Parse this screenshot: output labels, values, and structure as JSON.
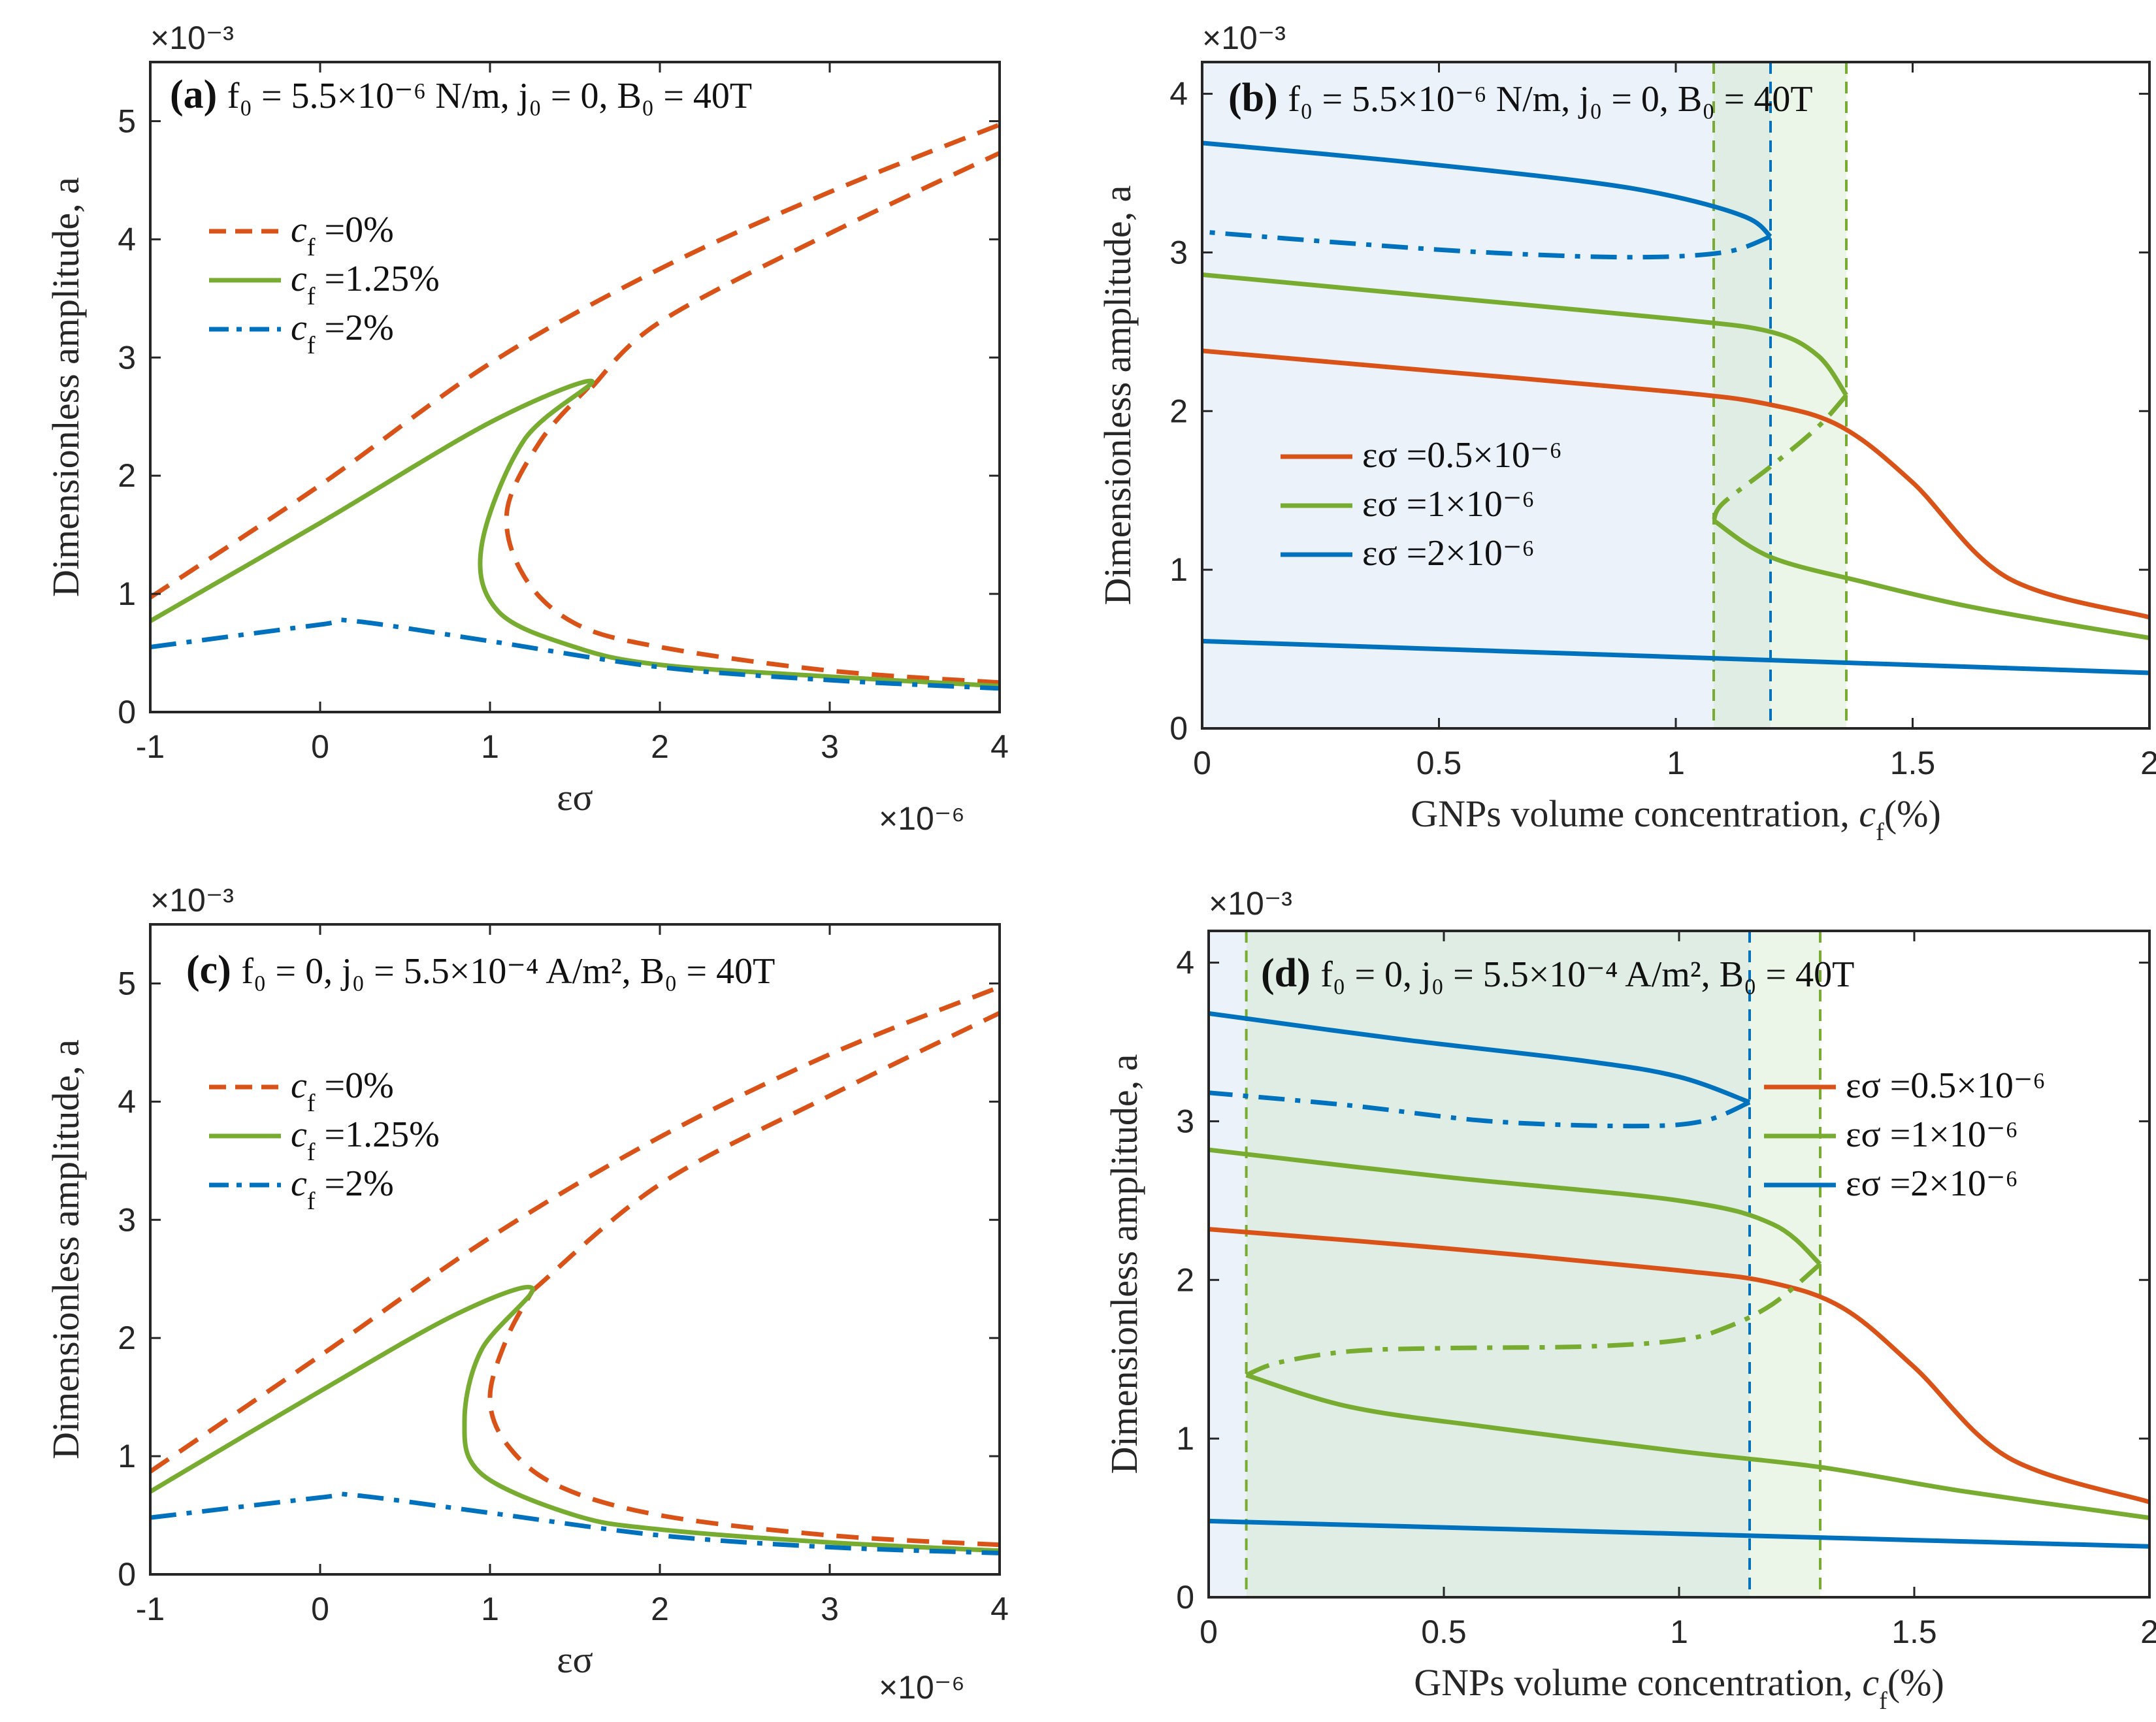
{
  "colors": {
    "c0": "#D95319",
    "c125": "#77AC30",
    "c2": "#0072BD",
    "shade_blue": "#C9D9F2",
    "shade_green": "#C9E6BE"
  },
  "chart_data": [
    {
      "id": "a",
      "type": "line",
      "panel_label": "(a)",
      "annotation": "f₀ = 5.5×10⁻⁶ N/m, j₀ = 0, B₀ = 40T",
      "xlabel": "εσ",
      "ylabel": "Dimensionless amplitude, a",
      "x_exponent": "×10⁻⁶",
      "y_exponent": "×10⁻³",
      "xlim": [
        -1,
        4
      ],
      "ylim": [
        0,
        5.5
      ],
      "xticks": [
        -1,
        0,
        1,
        2,
        3,
        4
      ],
      "yticks": [
        0,
        1,
        2,
        3,
        4,
        5
      ],
      "xtick_labels": [
        "-1",
        "0",
        "1",
        "2",
        "3",
        "4"
      ],
      "ytick_labels": [
        "0",
        "1",
        "2",
        "3",
        "4",
        "5"
      ],
      "legend": [
        {
          "label": "c_f =0%",
          "color_key": "c0",
          "style": "dashed"
        },
        {
          "label": "c_f =1.25%",
          "color_key": "c125",
          "style": "solid"
        },
        {
          "label": "c_f =2%",
          "color_key": "c2",
          "style": "dashdot"
        }
      ],
      "series": [
        {
          "name": "c_f =0% (upper branch)",
          "color_key": "c0",
          "style": "dashed",
          "x": [
            -1,
            0,
            1,
            2,
            3,
            4
          ],
          "y": [
            0.97,
            1.92,
            2.95,
            3.75,
            4.4,
            4.97
          ]
        },
        {
          "name": "c_f =0% (lower branch)",
          "color_key": "c0",
          "style": "dashed",
          "x": [
            4,
            3,
            2,
            1.5,
            1.2,
            1.1,
            1.3,
            1.58
          ],
          "y": [
            0.25,
            0.35,
            0.55,
            0.75,
            1.15,
            1.7,
            2.3,
            2.75
          ]
        },
        {
          "name": "c_f =0% (jump-down branch)",
          "color_key": "c0",
          "style": "dashed",
          "x": [
            1.6,
            2,
            3,
            4
          ],
          "y": [
            2.75,
            3.3,
            4.05,
            4.73
          ]
        },
        {
          "name": "c_f =1.25%",
          "color_key": "c125",
          "style": "solid",
          "x": [
            -1,
            0,
            1,
            1.6,
            1.2,
            0.95,
            1.05,
            1.5,
            2,
            3,
            4
          ],
          "y": [
            0.77,
            1.6,
            2.45,
            2.8,
            2.3,
            1.4,
            0.85,
            0.55,
            0.4,
            0.3,
            0.22
          ]
        },
        {
          "name": "c_f =2%",
          "color_key": "c2",
          "style": "dashdot",
          "x": [
            -1,
            0,
            0.2,
            1,
            2,
            3,
            4
          ],
          "y": [
            0.55,
            0.74,
            0.77,
            0.6,
            0.38,
            0.27,
            0.2
          ]
        }
      ]
    },
    {
      "id": "b",
      "type": "line",
      "panel_label": "(b)",
      "annotation": "f₀ = 5.5×10⁻⁶ N/m, j₀ = 0, B₀ = 40T",
      "xlabel": "GNPs volume concentration, c_f(%)",
      "ylabel": "Dimensionless amplitude, a",
      "y_exponent": "×10⁻³",
      "xlim": [
        0,
        2
      ],
      "ylim": [
        0,
        4.2
      ],
      "xticks": [
        0,
        0.5,
        1,
        1.5,
        2
      ],
      "yticks": [
        0,
        1,
        2,
        3,
        4
      ],
      "xtick_labels": [
        "0",
        "0.5",
        "1",
        "1.5",
        "2"
      ],
      "ytick_labels": [
        "0",
        "1",
        "2",
        "3",
        "4"
      ],
      "vlines": [
        {
          "x": 1.08,
          "color_key": "c125"
        },
        {
          "x": 1.2,
          "color_key": "c2"
        },
        {
          "x": 1.36,
          "color_key": "c125"
        }
      ],
      "shaded_regions": [
        {
          "x_from": 0,
          "x_to": 1.2,
          "color_key": "shade_blue"
        },
        {
          "x_from": 1.08,
          "x_to": 1.36,
          "color_key": "shade_green"
        }
      ],
      "legend": [
        {
          "label": "εσ =0.5×10⁻⁶",
          "color_key": "c0",
          "style": "solid"
        },
        {
          "label": "εσ =1×10⁻⁶",
          "color_key": "c125",
          "style": "solid"
        },
        {
          "label": "εσ =2×10⁻⁶",
          "color_key": "c2",
          "style": "solid"
        }
      ],
      "series": [
        {
          "name": "εσ =0.5×10⁻⁶",
          "color_key": "c0",
          "style": "solid",
          "x": [
            0,
            0.5,
            1,
            1.2,
            1.35,
            1.5,
            1.7,
            2
          ],
          "y": [
            2.38,
            2.25,
            2.12,
            2.04,
            1.9,
            1.55,
            0.95,
            0.7
          ]
        },
        {
          "name": "εσ =1×10⁻⁶ (upper)",
          "color_key": "c125",
          "style": "solid",
          "x": [
            0,
            0.5,
            1,
            1.2,
            1.3,
            1.36
          ],
          "y": [
            2.86,
            2.72,
            2.58,
            2.5,
            2.35,
            2.1
          ]
        },
        {
          "name": "εσ =1×10⁻⁶ (unstable)",
          "color_key": "c125",
          "style": "dashdot",
          "x": [
            1.36,
            1.3,
            1.2,
            1.1,
            1.08
          ],
          "y": [
            2.1,
            1.9,
            1.65,
            1.42,
            1.31
          ]
        },
        {
          "name": "εσ =1×10⁻⁶ (lower)",
          "color_key": "c125",
          "style": "solid",
          "x": [
            1.08,
            1.2,
            1.4,
            1.6,
            1.8,
            2
          ],
          "y": [
            1.31,
            1.08,
            0.92,
            0.78,
            0.67,
            0.57
          ]
        },
        {
          "name": "εσ =2×10⁻⁶ (upper)",
          "color_key": "c2",
          "style": "solid",
          "x": [
            0,
            0.4,
            0.8,
            1.0,
            1.15,
            1.2
          ],
          "y": [
            3.69,
            3.58,
            3.45,
            3.35,
            3.22,
            3.1
          ]
        },
        {
          "name": "εσ =2×10⁻⁶ (unstable)",
          "color_key": "c2",
          "style": "dashdot",
          "x": [
            1.2,
            1.1,
            0.9,
            0.6,
            0.3,
            0
          ],
          "y": [
            3.1,
            3.0,
            2.97,
            3.0,
            3.06,
            3.13
          ]
        },
        {
          "name": "εσ =2×10⁻⁶ (lower)",
          "color_key": "c2",
          "style": "solid",
          "x": [
            0,
            1,
            2
          ],
          "y": [
            0.55,
            0.45,
            0.35
          ]
        }
      ]
    },
    {
      "id": "c",
      "type": "line",
      "panel_label": "(c)",
      "annotation": "f₀ = 0, j₀ = 5.5×10⁻⁴ A/m², B₀ = 40T",
      "xlabel": "εσ",
      "ylabel": "Dimensionless amplitude, a",
      "x_exponent": "×10⁻⁶",
      "y_exponent": "×10⁻³",
      "xlim": [
        -1,
        4
      ],
      "ylim": [
        0,
        5.5
      ],
      "xticks": [
        -1,
        0,
        1,
        2,
        3,
        4
      ],
      "yticks": [
        0,
        1,
        2,
        3,
        4,
        5
      ],
      "xtick_labels": [
        "-1",
        "0",
        "1",
        "2",
        "3",
        "4"
      ],
      "ytick_labels": [
        "0",
        "1",
        "2",
        "3",
        "4",
        "5"
      ],
      "legend": [
        {
          "label": "c_f =0%",
          "color_key": "c0",
          "style": "dashed"
        },
        {
          "label": "c_f =1.25%",
          "color_key": "c125",
          "style": "solid"
        },
        {
          "label": "c_f =2%",
          "color_key": "c2",
          "style": "dashdot"
        }
      ],
      "series": [
        {
          "name": "c_f =0% (upper branch)",
          "color_key": "c0",
          "style": "dashed",
          "x": [
            -1,
            0,
            1,
            2,
            3,
            4
          ],
          "y": [
            0.87,
            1.85,
            2.85,
            3.7,
            4.4,
            4.97
          ]
        },
        {
          "name": "c_f =0% (lower branch)",
          "color_key": "c0",
          "style": "dashed",
          "x": [
            4,
            3,
            2,
            1.4,
            1.1,
            1.0,
            1.1,
            1.25
          ],
          "y": [
            0.25,
            0.33,
            0.5,
            0.75,
            1.1,
            1.5,
            2.0,
            2.4
          ]
        },
        {
          "name": "c_f =0% (jump-down branch)",
          "color_key": "c0",
          "style": "dashed",
          "x": [
            1.25,
            2,
            3,
            4
          ],
          "y": [
            2.4,
            3.3,
            4.05,
            4.75
          ]
        },
        {
          "name": "c_f =1.25%",
          "color_key": "c125",
          "style": "solid",
          "x": [
            -1,
            0,
            0.8,
            1.25,
            0.95,
            0.85,
            0.95,
            1.5,
            2,
            3,
            4
          ],
          "y": [
            0.7,
            1.55,
            2.2,
            2.42,
            1.9,
            1.3,
            0.85,
            0.5,
            0.38,
            0.27,
            0.2
          ]
        },
        {
          "name": "c_f =2%",
          "color_key": "c2",
          "style": "dashdot",
          "x": [
            -1,
            0,
            0.2,
            1,
            2,
            3,
            4
          ],
          "y": [
            0.48,
            0.65,
            0.67,
            0.52,
            0.33,
            0.23,
            0.18
          ]
        }
      ]
    },
    {
      "id": "d",
      "type": "line",
      "panel_label": "(d)",
      "annotation": "f₀ = 0, j₀ = 5.5×10⁻⁴ A/m², B₀ = 40T",
      "xlabel": "GNPs volume concentration, c_f(%)",
      "ylabel": "Dimensionless amplitude, a",
      "y_exponent": "×10⁻³",
      "xlim": [
        0,
        2
      ],
      "ylim": [
        0,
        4.2
      ],
      "xticks": [
        0,
        0.5,
        1,
        1.5,
        2
      ],
      "yticks": [
        0,
        1,
        2,
        3,
        4
      ],
      "xtick_labels": [
        "0",
        "0.5",
        "1",
        "1.5",
        "2"
      ],
      "ytick_labels": [
        "0",
        "1",
        "2",
        "3",
        "4"
      ],
      "vlines": [
        {
          "x": 0.08,
          "color_key": "c125"
        },
        {
          "x": 1.15,
          "color_key": "c2"
        },
        {
          "x": 1.3,
          "color_key": "c125"
        }
      ],
      "shaded_regions": [
        {
          "x_from": 0,
          "x_to": 1.15,
          "color_key": "shade_blue"
        },
        {
          "x_from": 0.08,
          "x_to": 1.3,
          "color_key": "shade_green"
        }
      ],
      "legend": [
        {
          "label": "εσ =0.5×10⁻⁶",
          "color_key": "c0",
          "style": "solid"
        },
        {
          "label": "εσ =1×10⁻⁶",
          "color_key": "c125",
          "style": "solid"
        },
        {
          "label": "εσ =2×10⁻⁶",
          "color_key": "c2",
          "style": "solid"
        }
      ],
      "series": [
        {
          "name": "εσ =0.5×10⁻⁶",
          "color_key": "c0",
          "style": "solid",
          "x": [
            0,
            0.5,
            1,
            1.2,
            1.35,
            1.5,
            1.7,
            2
          ],
          "y": [
            2.32,
            2.2,
            2.06,
            1.98,
            1.82,
            1.45,
            0.88,
            0.6
          ]
        },
        {
          "name": "εσ =1×10⁻⁶ (upper)",
          "color_key": "c125",
          "style": "solid",
          "x": [
            0,
            0.5,
            1,
            1.2,
            1.3
          ],
          "y": [
            2.82,
            2.65,
            2.5,
            2.35,
            2.1
          ]
        },
        {
          "name": "εσ =1×10⁻⁶ (unstable)",
          "color_key": "c125",
          "style": "dashdot",
          "x": [
            1.3,
            1.2,
            1.1,
            1.0,
            0.8,
            0.5,
            0.3,
            0.15,
            0.08
          ],
          "y": [
            2.1,
            1.85,
            1.7,
            1.62,
            1.58,
            1.57,
            1.55,
            1.48,
            1.4
          ]
        },
        {
          "name": "εσ =1×10⁻⁶ (lower)",
          "color_key": "c125",
          "style": "solid",
          "x": [
            0.08,
            0.3,
            0.6,
            1.0,
            1.3,
            1.6,
            2
          ],
          "y": [
            1.4,
            1.2,
            1.07,
            0.92,
            0.82,
            0.67,
            0.5
          ]
        },
        {
          "name": "εσ =2×10⁻⁶ (upper)",
          "color_key": "c2",
          "style": "solid",
          "x": [
            0,
            0.4,
            0.8,
            1.0,
            1.15
          ],
          "y": [
            3.68,
            3.52,
            3.38,
            3.28,
            3.12
          ]
        },
        {
          "name": "εσ =2×10⁻⁶ (unstable)",
          "color_key": "c2",
          "style": "dashdot",
          "x": [
            1.15,
            1.05,
            0.9,
            0.6,
            0.3,
            0
          ],
          "y": [
            3.12,
            3.0,
            2.97,
            3.0,
            3.1,
            3.18
          ]
        },
        {
          "name": "εσ =2×10⁻⁶ (lower)",
          "color_key": "c2",
          "style": "solid",
          "x": [
            0,
            1,
            2
          ],
          "y": [
            0.48,
            0.4,
            0.32
          ]
        }
      ]
    }
  ]
}
